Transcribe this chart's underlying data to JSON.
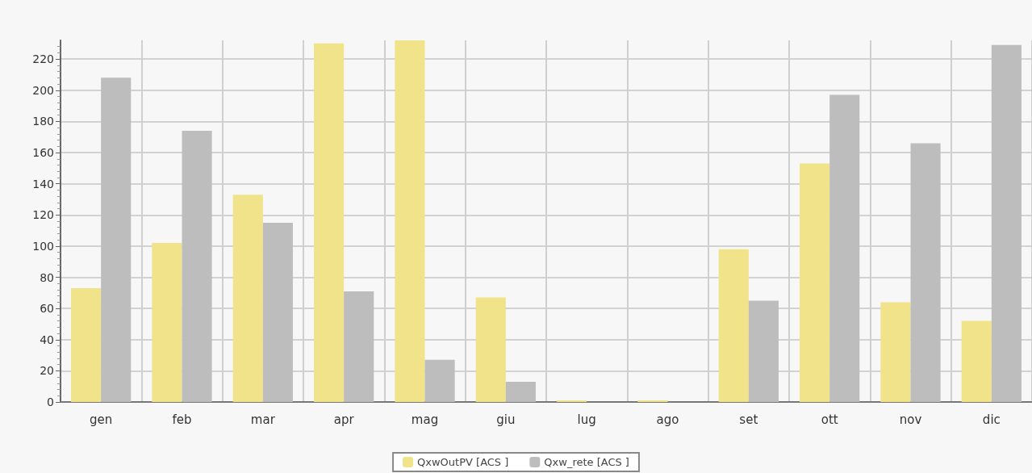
{
  "chart_data": {
    "type": "bar",
    "categories": [
      "gen",
      "feb",
      "mar",
      "apr",
      "mag",
      "giu",
      "lug",
      "ago",
      "set",
      "ott",
      "nov",
      "dic"
    ],
    "series": [
      {
        "name": "QxwOutPV [ACS ]",
        "color": "#f0e38a",
        "values": [
          73,
          102,
          133,
          230,
          232,
          67,
          1,
          1,
          98,
          153,
          64,
          52
        ]
      },
      {
        "name": "Qxw_rete [ACS ]",
        "color": "#bdbdbd",
        "values": [
          208,
          174,
          115,
          71,
          27,
          13,
          0,
          0,
          65,
          197,
          166,
          229
        ]
      }
    ],
    "ylim": [
      0,
      232
    ],
    "yticks": [
      0,
      20,
      40,
      60,
      80,
      100,
      120,
      140,
      160,
      180,
      200,
      220
    ],
    "grid": true,
    "legend": "bottom"
  }
}
